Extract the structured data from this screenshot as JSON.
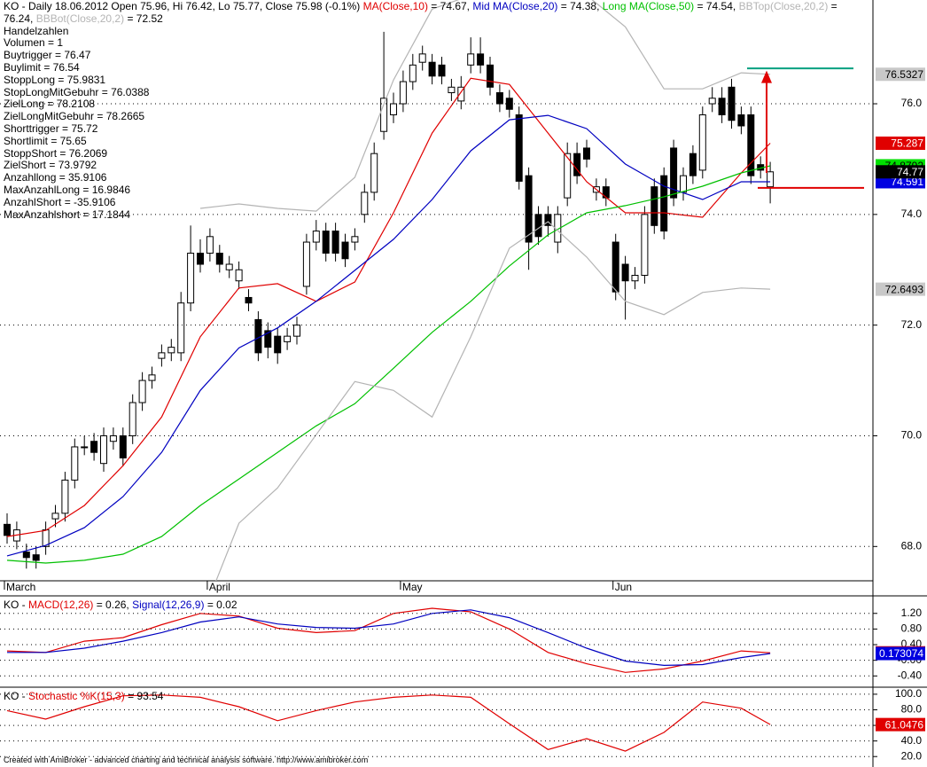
{
  "chart_data": [
    {
      "type": "candlestick",
      "header": "KO - Daily 18.06.2012 Open 75.96, Hi 76.42, Lo 75.77, Close 75.98 (-0.1%)",
      "info_lines": [
        "Handelzahlen",
        "Volumen = 1",
        "Buytrigger = 76.47",
        "Buylimit = 76.54",
        "StoppLong = 75.9831",
        "StopLongMitGebuhr = 76.0388",
        "ZielLong = 78.2108",
        "ZielLongMitGebuhr = 78.2665",
        "Shorttrigger = 75.72",
        "Shortlimit = 75.65",
        "StoppShort = 76.2069",
        "ZielShort = 73.9792",
        "Anzahllong = 35.9106",
        "MaxAnzahlLong = 16.9846",
        "AnzahlShort = -35.9106",
        "MaxAnzahlshort = 17.1844"
      ],
      "categories": [
        "March",
        null,
        null,
        null,
        null,
        null,
        null,
        null,
        null,
        null,
        null,
        null,
        null,
        null,
        null,
        null,
        null,
        null,
        null,
        null,
        null,
        "April",
        null,
        null,
        null,
        null,
        null,
        null,
        null,
        null,
        null,
        null,
        null,
        null,
        null,
        null,
        null,
        null,
        null,
        null,
        null,
        "May",
        null,
        null,
        null,
        null,
        null,
        null,
        null,
        null,
        null,
        null,
        null,
        null,
        null,
        null,
        null,
        null,
        null,
        null,
        null,
        null,
        null,
        "Jun",
        null,
        null,
        null,
        null,
        null,
        null,
        null,
        null,
        null,
        null,
        null,
        null,
        null,
        null,
        null,
        null
      ],
      "open": [
        68.4,
        68.1,
        67.9,
        67.85,
        68.0,
        68.5,
        68.6,
        69.2,
        69.8,
        69.9,
        69.5,
        69.9,
        70.0,
        70.0,
        70.6,
        71.0,
        71.4,
        71.5,
        71.5,
        72.4,
        73.3,
        73.3,
        73.3,
        73.0,
        72.8,
        72.5,
        72.1,
        71.9,
        71.8,
        71.7,
        71.8,
        72.7,
        73.5,
        73.7,
        73.7,
        73.5,
        73.5,
        74.0,
        74.4,
        75.5,
        75.8,
        76.0,
        76.4,
        76.75,
        76.75,
        76.7,
        76.2,
        76.05,
        76.7,
        76.9,
        76.7,
        76.2,
        76.1,
        75.8,
        74.7,
        74.0,
        74.0,
        73.5,
        74.3,
        75.1,
        75.2,
        74.4,
        74.5,
        73.5,
        73.1,
        72.8,
        72.9,
        74.5,
        74.7,
        75.2,
        74.4,
        75.1,
        74.8,
        76.0,
        76.1,
        76.3,
        75.8,
        75.8,
        74.9,
        74.5
      ],
      "high": [
        68.6,
        68.45,
        68.05,
        68.0,
        68.45,
        68.75,
        69.35,
        69.95,
        70.0,
        70.05,
        70.15,
        70.15,
        70.15,
        70.75,
        71.15,
        71.25,
        71.65,
        71.75,
        72.6,
        73.8,
        73.55,
        73.75,
        73.45,
        73.25,
        73.15,
        72.65,
        72.25,
        72.05,
        71.95,
        71.95,
        72.15,
        73.65,
        73.9,
        73.85,
        73.85,
        73.65,
        73.75,
        74.55,
        75.3,
        77.3,
        76.2,
        76.6,
        76.9,
        77.05,
        76.9,
        76.85,
        76.45,
        76.5,
        77.2,
        77.2,
        76.85,
        76.35,
        76.25,
        75.95,
        74.85,
        74.15,
        74.15,
        74.15,
        75.3,
        75.3,
        75.35,
        74.65,
        74.65,
        73.65,
        73.25,
        73.05,
        74.15,
        74.65,
        74.85,
        75.35,
        74.85,
        75.25,
        75.95,
        76.3,
        76.3,
        76.45,
        75.95,
        75.95,
        75.05,
        74.95
      ],
      "low": [
        68.05,
        67.95,
        67.6,
        67.6,
        67.85,
        68.35,
        68.45,
        69.05,
        69.65,
        69.55,
        69.35,
        69.75,
        69.45,
        69.85,
        70.45,
        70.85,
        71.25,
        71.35,
        71.35,
        72.25,
        72.95,
        73.15,
        72.95,
        72.85,
        72.65,
        72.25,
        71.35,
        71.4,
        71.3,
        71.55,
        71.65,
        72.55,
        73.35,
        73.15,
        73.15,
        73.05,
        73.35,
        73.85,
        74.25,
        75.35,
        75.65,
        75.85,
        76.25,
        76.6,
        76.35,
        76.35,
        76.05,
        75.9,
        76.55,
        76.55,
        76.15,
        75.85,
        75.75,
        74.45,
        73.0,
        73.45,
        73.6,
        73.3,
        74.15,
        74.55,
        74.85,
        74.25,
        74.15,
        72.45,
        72.1,
        72.65,
        72.75,
        73.65,
        73.55,
        74.15,
        74.25,
        74.55,
        74.65,
        75.85,
        75.65,
        75.55,
        75.45,
        74.55,
        74.65,
        74.2
      ],
      "close": [
        68.2,
        68.3,
        67.8,
        67.75,
        68.3,
        68.6,
        69.2,
        69.8,
        69.8,
        69.7,
        70.0,
        70.0,
        69.6,
        70.6,
        71.0,
        71.1,
        71.5,
        71.6,
        72.4,
        73.3,
        73.1,
        73.6,
        73.1,
        73.1,
        73.0,
        72.4,
        71.5,
        71.6,
        71.5,
        71.8,
        72.0,
        73.5,
        73.7,
        73.3,
        73.3,
        73.2,
        73.6,
        74.4,
        75.1,
        76.1,
        76.0,
        76.4,
        76.7,
        76.9,
        76.5,
        76.5,
        76.3,
        76.3,
        76.9,
        76.7,
        76.3,
        76.0,
        75.9,
        74.6,
        73.5,
        73.6,
        73.8,
        74.0,
        75.1,
        74.7,
        75.0,
        74.5,
        74.3,
        72.6,
        72.8,
        72.9,
        74.0,
        73.8,
        73.7,
        74.3,
        74.7,
        74.7,
        75.8,
        76.1,
        75.8,
        75.7,
        75.6,
        74.7,
        74.8,
        74.77
      ],
      "up_color": "#ffffff",
      "down_color": "#000000",
      "close_tag_color": "#000000",
      "close_tag_text_color": "#ffffff",
      "series": [
        {
          "name": "MA(Close,10)",
          "legend_value": "= 74.67,",
          "color": "#e00000",
          "tag_color": "#e00000",
          "tag_text_color": "#ffffff",
          "x": [
            0,
            4,
            8,
            12,
            16,
            20,
            24,
            28,
            32,
            36,
            40,
            44,
            48,
            52,
            56,
            60,
            64,
            68,
            72,
            76,
            79
          ],
          "values": [
            68.18,
            68.29,
            68.74,
            69.46,
            70.34,
            71.79,
            72.67,
            72.75,
            72.43,
            72.78,
            74.03,
            75.47,
            76.46,
            76.35,
            75.47,
            74.59,
            74.03,
            74.03,
            73.95,
            74.75,
            75.287
          ]
        },
        {
          "name": "Mid MA(Close,20)",
          "legend_value": "= 74.38,",
          "color": "#0000c0",
          "tag_color": "#0000e0",
          "tag_text_color": "#ffffff",
          "x": [
            0,
            4,
            8,
            12,
            16,
            20,
            24,
            28,
            32,
            36,
            40,
            44,
            48,
            52,
            56,
            60,
            64,
            68,
            72,
            76,
            79
          ],
          "values": [
            67.83,
            68.02,
            68.34,
            68.9,
            69.7,
            70.82,
            71.59,
            71.95,
            72.43,
            72.99,
            73.55,
            74.27,
            75.15,
            75.71,
            75.79,
            75.55,
            74.91,
            74.51,
            74.27,
            74.59,
            74.591
          ]
        },
        {
          "name": "Long MA(Close,50)",
          "legend_value": "= 74.54,",
          "color": "#00c000",
          "tag_color": "#00e000",
          "tag_text_color": "#000000",
          "x": [
            0,
            4,
            8,
            12,
            16,
            20,
            24,
            28,
            32,
            36,
            40,
            44,
            48,
            52,
            56,
            60,
            64,
            68,
            72,
            76,
            79
          ],
          "values": [
            67.75,
            67.7,
            67.75,
            67.86,
            68.18,
            68.74,
            69.22,
            69.7,
            70.18,
            70.58,
            71.22,
            71.87,
            72.43,
            73.07,
            73.63,
            74.03,
            74.16,
            74.32,
            74.51,
            74.75,
            74.8792
          ]
        },
        {
          "name": "BBTop(Close,20,2)",
          "legend_value": "= 76.24,",
          "color": "#b4b4b4",
          "tag_color": "#c8c8c8",
          "tag_text_color": "#000000",
          "x": [
            20,
            24,
            28,
            32,
            36,
            40,
            44,
            48,
            52,
            56,
            60,
            64,
            68,
            72,
            76,
            79
          ],
          "values": [
            74.11,
            74.19,
            74.11,
            74.06,
            74.67,
            76.43,
            77.71,
            77.96,
            78.04,
            78.12,
            77.96,
            77.39,
            76.27,
            76.27,
            76.56,
            76.5327
          ]
        },
        {
          "name": "BBBot(Close,20,2)",
          "legend_value": "= 72.52",
          "color": "#b4b4b4",
          "tag_color": "#c8c8c8",
          "tag_text_color": "#000000",
          "x": [
            20,
            24,
            28,
            32,
            36,
            40,
            44,
            48,
            52,
            56,
            60,
            64,
            68,
            72,
            76,
            79
          ],
          "values": [
            66.66,
            68.42,
            69.06,
            70.02,
            70.98,
            70.82,
            70.34,
            71.79,
            73.39,
            73.87,
            73.23,
            72.43,
            72.19,
            72.59,
            72.67,
            72.6493
          ]
        }
      ],
      "target_lines": [
        {
          "value": 76.64,
          "color": "#00a080"
        },
        {
          "value": 74.48,
          "color": "#e00000"
        }
      ],
      "arrow": {
        "from": 74.75,
        "to": 76.6,
        "color": "#e00000"
      },
      "ylim": [
        67.38,
        77.875
      ],
      "yticks": [
        {
          "value": 68,
          "label": "68.0"
        },
        {
          "value": 70,
          "label": "70.0"
        },
        {
          "value": 72,
          "label": "72.0"
        },
        {
          "value": 74,
          "label": "74.0"
        },
        {
          "value": 76,
          "label": "76.0"
        }
      ],
      "grid": true
    },
    {
      "type": "line",
      "header": "KO -",
      "series": [
        {
          "name": "MACD(12,26)",
          "legend_value": "= 0.26,",
          "color": "#e00000",
          "tag_color": "#e00000",
          "tag_text_color": "#ffffff",
          "x": [
            0,
            4,
            8,
            12,
            16,
            20,
            24,
            28,
            32,
            36,
            40,
            44,
            48,
            52,
            56,
            60,
            64,
            68,
            72,
            76,
            79
          ],
          "values": [
            0.24,
            0.2,
            0.49,
            0.58,
            0.91,
            1.2,
            1.13,
            0.82,
            0.71,
            0.76,
            1.2,
            1.33,
            1.24,
            0.8,
            0.2,
            -0.09,
            -0.31,
            -0.22,
            -0.02,
            0.24,
            0.191303
          ]
        },
        {
          "name": "Signal(12,26,9)",
          "legend_value": "= 0.02",
          "color": "#0000c0",
          "tag_color": "#0000e0",
          "tag_text_color": "#ffffff",
          "x": [
            0,
            4,
            8,
            12,
            16,
            20,
            24,
            28,
            32,
            36,
            40,
            44,
            48,
            52,
            56,
            60,
            64,
            68,
            72,
            76,
            79
          ],
          "values": [
            0.2,
            0.2,
            0.31,
            0.49,
            0.71,
            0.98,
            1.11,
            0.93,
            0.84,
            0.82,
            0.93,
            1.2,
            1.29,
            1.09,
            0.71,
            0.31,
            -0.02,
            -0.13,
            -0.11,
            0.07,
            0.173074
          ]
        }
      ],
      "ylim": [
        -0.62,
        1.58
      ],
      "yticks": [
        {
          "value": 1.2,
          "label": "1.20"
        },
        {
          "value": 0.8,
          "label": "0.80"
        },
        {
          "value": 0.4,
          "label": "0.40"
        },
        {
          "value": 0,
          "label": "-0.00"
        },
        {
          "value": -0.4,
          "label": "-0.40"
        }
      ],
      "grid": true
    },
    {
      "type": "line",
      "header": "KO -",
      "series": [
        {
          "name": "Stochastic %K(15,3)",
          "legend_value": "= 93.54",
          "color": "#e00000",
          "tag_color": "#e00000",
          "tag_text_color": "#ffffff",
          "x": [
            0,
            4,
            8,
            12,
            16,
            20,
            24,
            28,
            32,
            36,
            40,
            44,
            48,
            52,
            56,
            60,
            64,
            68,
            72,
            76,
            79
          ],
          "values": [
            79,
            68,
            84,
            98,
            99,
            96,
            84,
            66,
            79,
            90,
            96,
            99,
            96,
            62,
            29,
            43,
            27,
            51,
            90,
            82,
            61.0476
          ]
        }
      ],
      "ylim": [
        10,
        105.6
      ],
      "yticks": [
        {
          "value": 100,
          "label": "100.0"
        },
        {
          "value": 80,
          "label": "80.0"
        },
        {
          "value": 60,
          "label": "60.0"
        },
        {
          "value": 40,
          "label": "40.0"
        },
        {
          "value": 20,
          "label": "20.0"
        }
      ],
      "grid": true
    }
  ],
  "footer": "Created with AmiBroker - advanced charting and technical analysis software. http://www.amibroker.com"
}
